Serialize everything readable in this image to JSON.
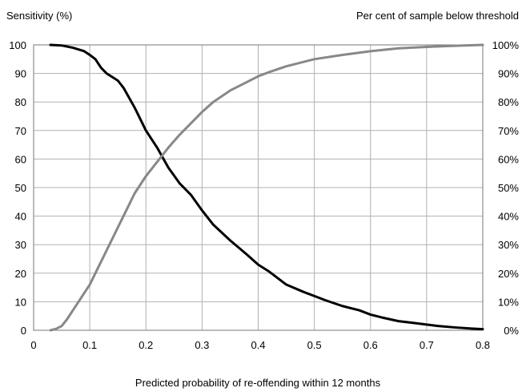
{
  "chart_data": {
    "type": "line",
    "xlabel": "Predicted probability of re-offending within 12 months",
    "ylabel_left": "Sensitivity (%)",
    "ylabel_right": "Per cent of sample below threshold",
    "xlim": [
      0,
      0.8
    ],
    "ylim": [
      0,
      100
    ],
    "x_ticks": [
      "0",
      "0.1",
      "0.2",
      "0.3",
      "0.4",
      "0.5",
      "0.6",
      "0.7",
      "0.8"
    ],
    "y_ticks_left": [
      "0",
      "10",
      "20",
      "30",
      "40",
      "50",
      "60",
      "70",
      "80",
      "90",
      "100"
    ],
    "y_ticks_right": [
      "0%",
      "10%",
      "20%",
      "30%",
      "40%",
      "50%",
      "60%",
      "70%",
      "80%",
      "90%",
      "100%"
    ],
    "grid": true,
    "series": [
      {
        "color": "#000000",
        "x": [
          0.03,
          0.05,
          0.07,
          0.09,
          0.1,
          0.11,
          0.12,
          0.13,
          0.15,
          0.16,
          0.18,
          0.2,
          0.22,
          0.24,
          0.26,
          0.28,
          0.3,
          0.32,
          0.35,
          0.38,
          0.4,
          0.42,
          0.45,
          0.48,
          0.5,
          0.52,
          0.55,
          0.58,
          0.6,
          0.62,
          0.65,
          0.68,
          0.7,
          0.72,
          0.75,
          0.78,
          0.8
        ],
        "y": [
          100,
          99.8,
          99,
          97.8,
          96.5,
          95,
          92,
          90,
          87.5,
          85,
          78,
          70,
          64,
          57,
          51.5,
          47.5,
          42,
          37,
          31.5,
          26.5,
          23,
          20.5,
          16,
          13.5,
          12,
          10.5,
          8.5,
          7,
          5.5,
          4.5,
          3.2,
          2.5,
          2,
          1.5,
          1,
          0.6,
          0.4
        ]
      },
      {
        "color": "#888888",
        "x": [
          0.03,
          0.04,
          0.05,
          0.06,
          0.07,
          0.08,
          0.09,
          0.1,
          0.11,
          0.12,
          0.13,
          0.14,
          0.15,
          0.16,
          0.18,
          0.2,
          0.22,
          0.24,
          0.26,
          0.28,
          0.3,
          0.32,
          0.35,
          0.38,
          0.4,
          0.42,
          0.45,
          0.5,
          0.55,
          0.6,
          0.65,
          0.7,
          0.75,
          0.8
        ],
        "y": [
          0,
          0.5,
          1.5,
          4,
          7,
          10,
          13,
          16,
          20,
          24,
          28,
          32,
          36,
          40,
          48,
          54,
          59,
          64,
          68.5,
          72.5,
          76.5,
          80,
          84,
          87,
          89,
          90.5,
          92.5,
          95,
          96.5,
          97.8,
          98.8,
          99.3,
          99.7,
          100
        ]
      }
    ]
  }
}
